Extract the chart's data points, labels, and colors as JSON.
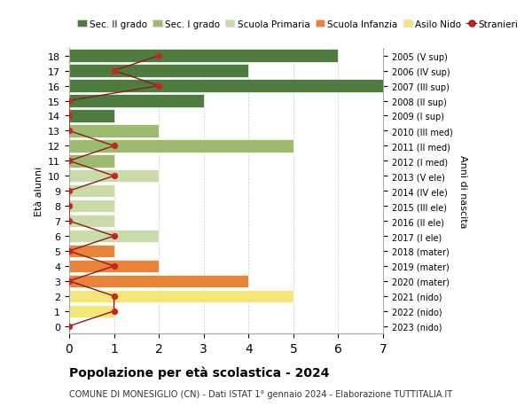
{
  "ages": [
    0,
    1,
    2,
    3,
    4,
    5,
    6,
    7,
    8,
    9,
    10,
    11,
    12,
    13,
    14,
    15,
    16,
    17,
    18
  ],
  "right_labels": [
    "2023 (nido)",
    "2022 (nido)",
    "2021 (nido)",
    "2020 (mater)",
    "2019 (mater)",
    "2018 (mater)",
    "2017 (I ele)",
    "2016 (II ele)",
    "2015 (III ele)",
    "2014 (IV ele)",
    "2013 (V ele)",
    "2012 (I med)",
    "2011 (II med)",
    "2010 (III med)",
    "2009 (I sup)",
    "2008 (II sup)",
    "2007 (III sup)",
    "2006 (IV sup)",
    "2005 (V sup)"
  ],
  "bar_values": [
    0,
    1,
    5,
    4,
    2,
    1,
    2,
    1,
    1,
    1,
    2,
    1,
    5,
    2,
    1,
    3,
    7,
    4,
    6
  ],
  "stranieri": [
    0,
    1,
    1,
    0,
    1,
    0,
    1,
    0,
    0,
    0,
    1,
    0,
    1,
    0,
    0,
    0,
    2,
    1,
    2
  ],
  "bar_colors": [
    "#f5e67a",
    "#f5e67a",
    "#f5e67a",
    "#e8843a",
    "#e8843a",
    "#e8843a",
    "#c8dba8",
    "#c8dba8",
    "#c8dba8",
    "#c8dba8",
    "#c8dba8",
    "#9cbb6e",
    "#9cbb6e",
    "#9cbb6e",
    "#4e7c3f",
    "#4e7c3f",
    "#4e7c3f",
    "#4e7c3f",
    "#4e7c3f"
  ],
  "legend_labels": [
    "Sec. II grado",
    "Sec. I grado",
    "Scuola Primaria",
    "Scuola Infanzia",
    "Asilo Nido",
    "Stranieri"
  ],
  "legend_colors": [
    "#4e7c3f",
    "#9cbb6e",
    "#c8dba8",
    "#e8843a",
    "#f5e67a",
    "#cc2222"
  ],
  "ylabel": "Età alunni",
  "ylabel_right": "Anni di nascita",
  "title": "Popolazione per età scolastica - 2024",
  "subtitle": "COMUNE DI MONESIGLIO (CN) - Dati ISTAT 1° gennaio 2024 - Elaborazione TUTTITALIA.IT",
  "xlim": [
    0,
    7
  ],
  "background_color": "#ffffff",
  "grid_color": "#cccccc"
}
